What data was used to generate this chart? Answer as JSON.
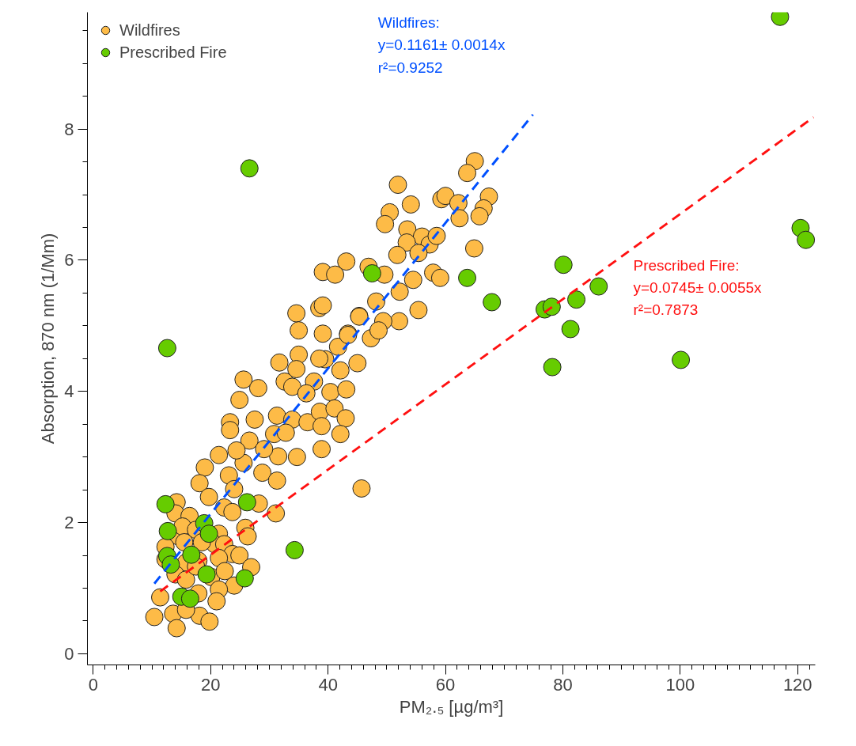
{
  "chart_data": {
    "type": "scatter",
    "xlabel": "PM₂.₅ [µg/m³]",
    "ylabel": "Absorption, 870 nm (1/Mm)",
    "xlim": [
      -1,
      123
    ],
    "ylim": [
      -0.17,
      9.78
    ],
    "xticks": [
      0,
      20,
      40,
      60,
      80,
      100,
      120,
      {
        "value": 2,
        "label": null
      },
      {
        "value": 4,
        "label": null
      },
      {
        "value": 6,
        "label": null
      },
      {
        "value": 8,
        "label": null
      },
      {
        "value": 10,
        "label": null
      },
      {
        "value": 12,
        "label": null
      },
      {
        "value": 14,
        "label": null
      },
      {
        "value": 16,
        "label": null
      },
      {
        "value": 18,
        "label": null
      },
      {
        "value": 22,
        "label": null
      },
      {
        "value": 24,
        "label": null
      },
      {
        "value": 26,
        "label": null
      },
      {
        "value": 28,
        "label": null
      },
      {
        "value": 30,
        "label": null
      },
      {
        "value": 32,
        "label": null
      },
      {
        "value": 34,
        "label": null
      },
      {
        "value": 36,
        "label": null
      },
      {
        "value": 38,
        "label": null
      },
      {
        "value": 42,
        "label": null
      },
      {
        "value": 44,
        "label": null
      },
      {
        "value": 46,
        "label": null
      },
      {
        "value": 48,
        "label": null
      },
      {
        "value": 50,
        "label": null
      },
      {
        "value": 52,
        "label": null
      },
      {
        "value": 54,
        "label": null
      },
      {
        "value": 56,
        "label": null
      },
      {
        "value": 58,
        "label": null
      },
      {
        "value": 62,
        "label": null
      },
      {
        "value": 64,
        "label": null
      },
      {
        "value": 66,
        "label": null
      },
      {
        "value": 68,
        "label": null
      },
      {
        "value": 70,
        "label": null
      },
      {
        "value": 72,
        "label": null
      },
      {
        "value": 74,
        "label": null
      },
      {
        "value": 76,
        "label": null
      },
      {
        "value": 78,
        "label": null
      },
      {
        "value": 82,
        "label": null
      },
      {
        "value": 84,
        "label": null
      },
      {
        "value": 86,
        "label": null
      },
      {
        "value": 88,
        "label": null
      },
      {
        "value": 90,
        "label": null
      },
      {
        "value": 92,
        "label": null
      },
      {
        "value": 94,
        "label": null
      },
      {
        "value": 96,
        "label": null
      },
      {
        "value": 98,
        "label": null
      },
      {
        "value": 102,
        "label": null
      },
      {
        "value": 104,
        "label": null
      },
      {
        "value": 106,
        "label": null
      },
      {
        "value": 108,
        "label": null
      },
      {
        "value": 110,
        "label": null
      },
      {
        "value": 112,
        "label": null
      },
      {
        "value": 114,
        "label": null
      },
      {
        "value": 116,
        "label": null
      },
      {
        "value": 118,
        "label": null
      },
      {
        "value": 122,
        "label": null
      }
    ],
    "yticks": [
      0,
      2,
      4,
      6,
      8,
      {
        "value": 0.5,
        "label": null
      },
      {
        "value": 1,
        "label": null
      },
      {
        "value": 1.5,
        "label": null
      },
      {
        "value": 2.5,
        "label": null
      },
      {
        "value": 3,
        "label": null
      },
      {
        "value": 3.5,
        "label": null
      },
      {
        "value": 4.5,
        "label": null
      },
      {
        "value": 5,
        "label": null
      },
      {
        "value": 5.5,
        "label": null
      },
      {
        "value": 6.5,
        "label": null
      },
      {
        "value": 7,
        "label": null
      },
      {
        "value": 7.5,
        "label": null
      },
      {
        "value": 8.5,
        "label": null
      },
      {
        "value": 9,
        "label": null
      },
      {
        "value": 9.5,
        "label": null
      }
    ],
    "grid": false,
    "legend": "top left",
    "marker": "circle",
    "annotations": [
      "Wildfires:\ny=0.1161± 0.0014x\nr²=0.9252",
      "Prescribed Fire:\ny=0.0745± 0.0055x\nr²=0.7873"
    ],
    "series": [
      {
        "name": "Wildfires",
        "color": "#fdbb47",
        "x": [
          19.0,
          18.1,
          23.1,
          25.6,
          28.8,
          31.3,
          19.7,
          24.0,
          14.2,
          14.0,
          16.4,
          22.3,
          23.7,
          28.2,
          31.1,
          14.5,
          15.2,
          17.5,
          21.4,
          20.7,
          22.3,
          25.9,
          26.3,
          12.3,
          15.5,
          18.5,
          23.7,
          24.9,
          12.3,
          15.8,
          17.9,
          21.4,
          26.9,
          14.0,
          15.8,
          17.5,
          20.1,
          22.4,
          24.0,
          21.4,
          11.4,
          17.9,
          21.0,
          10.4,
          13.6,
          14.2,
          18.1,
          19.8,
          15.8,
          34.6,
          38.5,
          35.0,
          39.1,
          43.4,
          45.3,
          41.7,
          39.5,
          38.5,
          35.0,
          31.7,
          34.6,
          45.0,
          42.1,
          32.6,
          33.9,
          37.6,
          36.3,
          40.4,
          43.1,
          25.6,
          28.1,
          24.9,
          31.3,
          33.9,
          36.5,
          38.6,
          41.1,
          43.0,
          27.5,
          23.3,
          23.3,
          26.6,
          30.8,
          32.8,
          38.9,
          42.1,
          38.9,
          34.7,
          31.5,
          29.1,
          24.4,
          21.4,
          65.0,
          63.7,
          51.9,
          54.1,
          50.5,
          49.7,
          59.3,
          60.0,
          62.2,
          67.4,
          66.5,
          65.8,
          62.4,
          53.5,
          56.0,
          53.4,
          57.3,
          58.5,
          51.8,
          55.4,
          64.9,
          43.1,
          39.1,
          41.2,
          46.9,
          49.6,
          54.5,
          57.9,
          59.1,
          52.2,
          48.2,
          55.4,
          52.1,
          49.4,
          45.3,
          43.4,
          39.1,
          47.3,
          48.6,
          45.7
        ],
        "values": [
          2.84,
          2.6,
          2.72,
          2.91,
          2.76,
          2.64,
          2.39,
          2.51,
          2.31,
          2.14,
          2.1,
          2.23,
          2.16,
          2.29,
          2.14,
          1.79,
          1.94,
          1.89,
          1.83,
          1.67,
          1.67,
          1.92,
          1.79,
          1.63,
          1.7,
          1.7,
          1.52,
          1.5,
          1.44,
          1.39,
          1.42,
          1.46,
          1.32,
          1.21,
          1.13,
          1.33,
          1.17,
          1.26,
          1.04,
          0.98,
          0.86,
          0.92,
          0.8,
          0.56,
          0.61,
          0.39,
          0.58,
          0.49,
          0.67,
          5.19,
          5.27,
          4.93,
          4.88,
          4.88,
          5.15,
          4.68,
          4.49,
          4.5,
          4.56,
          4.44,
          4.34,
          4.43,
          4.32,
          4.15,
          4.07,
          4.15,
          3.97,
          3.99,
          4.03,
          4.18,
          4.05,
          3.87,
          3.63,
          3.57,
          3.53,
          3.69,
          3.74,
          3.59,
          3.57,
          3.53,
          3.41,
          3.25,
          3.35,
          3.37,
          3.47,
          3.35,
          3.12,
          3.0,
          3.01,
          3.12,
          3.1,
          3.03,
          7.51,
          7.33,
          7.15,
          6.85,
          6.73,
          6.55,
          6.93,
          6.98,
          6.87,
          6.97,
          6.79,
          6.67,
          6.64,
          6.47,
          6.36,
          6.27,
          6.24,
          6.37,
          6.08,
          6.11,
          6.18,
          5.98,
          5.82,
          5.78,
          5.9,
          5.78,
          5.7,
          5.81,
          5.73,
          5.52,
          5.37,
          5.24,
          5.07,
          5.07,
          5.14,
          4.86,
          5.31,
          4.81,
          4.93,
          2.52
        ]
      },
      {
        "name": "Prescribed Fire",
        "color": "#66cc00",
        "x": [
          117.0,
          120.5,
          121.4,
          80.1,
          86.1,
          76.9,
          78.1,
          82.3,
          81.3,
          78.2,
          100.1,
          63.7,
          67.9,
          47.5,
          12.6,
          26.6,
          34.3,
          12.3,
          12.7,
          18.9,
          19.7,
          26.2,
          12.6,
          13.2,
          16.7,
          19.3,
          25.8,
          15.0,
          16.5
        ],
        "values": [
          9.71,
          6.49,
          6.31,
          5.93,
          5.6,
          5.25,
          5.29,
          5.4,
          4.95,
          4.37,
          4.48,
          5.73,
          5.36,
          5.8,
          4.66,
          7.4,
          1.58,
          2.28,
          1.87,
          1.99,
          1.83,
          2.31,
          1.49,
          1.36,
          1.51,
          1.21,
          1.15,
          0.87,
          0.84
        ]
      },
      {
        "type": "line",
        "marker": "none",
        "color": "#0050ff",
        "line_style": "dashed",
        "x": [
          10.4,
          74.9
        ],
        "values": [
          1.07,
          8.22
        ]
      },
      {
        "type": "line",
        "marker": "none",
        "color": "#ff1010",
        "line_style": "dashed",
        "x": [
          11.4,
          122.7
        ],
        "values": [
          0.95,
          8.18
        ]
      }
    ]
  }
}
